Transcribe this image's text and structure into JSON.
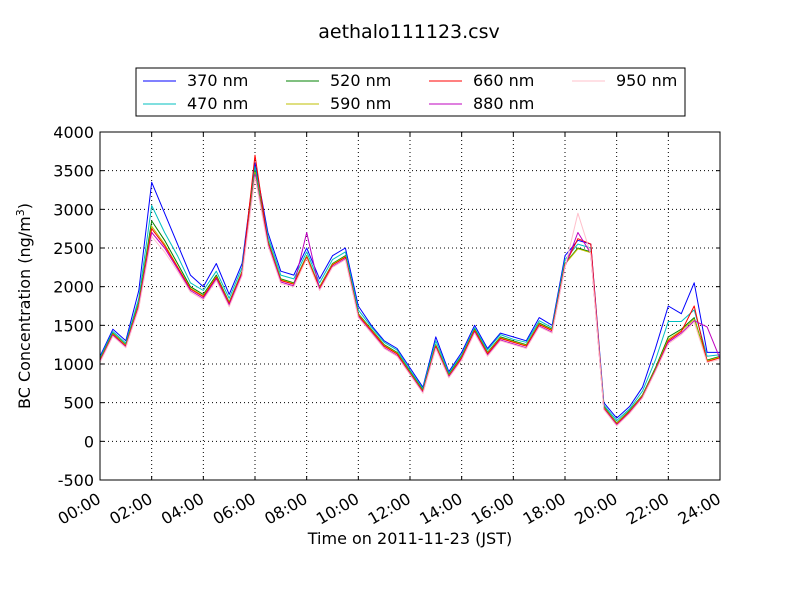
{
  "chart_data": {
    "type": "line",
    "title": "aethalo111123.csv",
    "xlabel": "Time on 2011-11-23 (JST)",
    "ylabel": "BC Concentration (ng/m",
    "ylabel_sup": "3",
    "ylabel_end": ")",
    "xlim": [
      0,
      24
    ],
    "ylim": [
      -500,
      4000
    ],
    "x_ticks": [
      0,
      2,
      4,
      6,
      8,
      10,
      12,
      14,
      16,
      18,
      20,
      22,
      24
    ],
    "x_tick_labels": [
      "00:00",
      "02:00",
      "04:00",
      "06:00",
      "08:00",
      "10:00",
      "12:00",
      "14:00",
      "16:00",
      "18:00",
      "20:00",
      "22:00",
      "24:00"
    ],
    "y_ticks": [
      -500,
      0,
      500,
      1000,
      1500,
      2000,
      2500,
      3000,
      3500,
      4000
    ],
    "y_tick_labels": [
      "-500",
      "0",
      "500",
      "1000",
      "1500",
      "2000",
      "2500",
      "3000",
      "3500",
      "4000"
    ],
    "grid": true,
    "legend_position": "top, above plot",
    "x": [
      0,
      0.5,
      1,
      1.5,
      2,
      2.5,
      3,
      3.5,
      4,
      4.5,
      5,
      5.5,
      6,
      6.5,
      7,
      7.5,
      8,
      8.5,
      9,
      9.5,
      10,
      10.5,
      11,
      11.5,
      12,
      12.5,
      13,
      13.5,
      14,
      14.5,
      15,
      15.5,
      16,
      16.5,
      17,
      17.5,
      18,
      18.5,
      19,
      19.5,
      20,
      20.5,
      21,
      21.5,
      22,
      22.5,
      23,
      23.5,
      24
    ],
    "series": [
      {
        "name": "370 nm",
        "color": "#0000ff",
        "values": [
          1100,
          1450,
          1300,
          1950,
          3350,
          2950,
          2550,
          2150,
          2000,
          2300,
          1900,
          2300,
          3600,
          2700,
          2200,
          2150,
          2500,
          2100,
          2400,
          2500,
          1750,
          1500,
          1300,
          1200,
          950,
          700,
          1350,
          900,
          1150,
          1500,
          1200,
          1400,
          1350,
          1300,
          1600,
          1500,
          2400,
          2600,
          2550,
          500,
          300,
          450,
          700,
          1200,
          1750,
          1650,
          2050,
          1150,
          1150
        ]
      },
      {
        "name": "470 nm",
        "color": "#00bfbf",
        "values": [
          1080,
          1420,
          1270,
          1850,
          3050,
          2700,
          2400,
          2050,
          1950,
          2200,
          1850,
          2250,
          3550,
          2650,
          2150,
          2100,
          2450,
          2050,
          2350,
          2450,
          1700,
          1480,
          1280,
          1180,
          920,
          680,
          1300,
          880,
          1120,
          1470,
          1180,
          1380,
          1320,
          1280,
          1560,
          1470,
          2350,
          2550,
          2500,
          470,
          270,
          420,
          650,
          1050,
          1550,
          1550,
          1700,
          1100,
          1120
        ]
      },
      {
        "name": "520 nm",
        "color": "#008000",
        "values": [
          1060,
          1400,
          1250,
          1800,
          2850,
          2600,
          2300,
          2000,
          1900,
          2150,
          1800,
          2200,
          3500,
          2600,
          2100,
          2050,
          2400,
          2000,
          2300,
          2400,
          1650,
          1450,
          1250,
          1150,
          900,
          660,
          1250,
          860,
          1100,
          1450,
          1150,
          1350,
          1300,
          1250,
          1530,
          1450,
          2300,
          2500,
          2450,
          450,
          240,
          400,
          600,
          950,
          1350,
          1450,
          1600,
          1050,
          1100
        ]
      },
      {
        "name": "590 nm",
        "color": "#bfbf00",
        "values": [
          1050,
          1390,
          1240,
          1780,
          2780,
          2550,
          2260,
          1980,
          1880,
          2130,
          1790,
          2190,
          3480,
          2580,
          2090,
          2040,
          2390,
          1990,
          2290,
          2390,
          1640,
          1440,
          1240,
          1140,
          890,
          650,
          1240,
          850,
          1090,
          1440,
          1140,
          1340,
          1290,
          1240,
          1520,
          1440,
          2290,
          2490,
          2440,
          440,
          230,
          390,
          590,
          930,
          1320,
          1430,
          1580,
          1040,
          1090
        ]
      },
      {
        "name": "660 nm",
        "color": "#ff0000",
        "values": [
          1040,
          1380,
          1230,
          1760,
          2750,
          2530,
          2250,
          1970,
          1870,
          2120,
          1780,
          2180,
          3700,
          2570,
          2080,
          2030,
          2380,
          1980,
          2280,
          2380,
          1630,
          1430,
          1230,
          1130,
          880,
          640,
          1230,
          840,
          1080,
          1430,
          1130,
          1330,
          1280,
          1230,
          1510,
          1430,
          2280,
          2620,
          2550,
          430,
          220,
          380,
          580,
          920,
          1300,
          1420,
          1750,
          1030,
          1080
        ]
      },
      {
        "name": "880 nm",
        "color": "#bf00bf",
        "values": [
          1030,
          1370,
          1220,
          1740,
          2700,
          2500,
          2230,
          1950,
          1850,
          2100,
          1760,
          2160,
          3450,
          2550,
          2060,
          2010,
          2700,
          1960,
          2260,
          2360,
          1610,
          1410,
          1210,
          1110,
          870,
          630,
          1210,
          830,
          1060,
          1410,
          1110,
          1310,
          1260,
          1210,
          1490,
          1410,
          2260,
          2700,
          2430,
          420,
          210,
          370,
          570,
          910,
          1280,
          1400,
          1560,
          1480,
          1070
        ]
      },
      {
        "name": "950 nm",
        "color": "#ffc0cb",
        "values": [
          1020,
          1360,
          1210,
          1720,
          2650,
          2450,
          2200,
          1930,
          1830,
          2080,
          1740,
          2140,
          3420,
          2530,
          2040,
          2000,
          2360,
          1950,
          2250,
          2350,
          1600,
          1400,
          1200,
          1100,
          860,
          620,
          1200,
          820,
          1050,
          1400,
          1100,
          1300,
          1250,
          1200,
          1480,
          1400,
          2250,
          2950,
          2420,
          410,
          200,
          360,
          560,
          900,
          1260,
          1380,
          1540,
          1020,
          1060
        ]
      }
    ]
  }
}
